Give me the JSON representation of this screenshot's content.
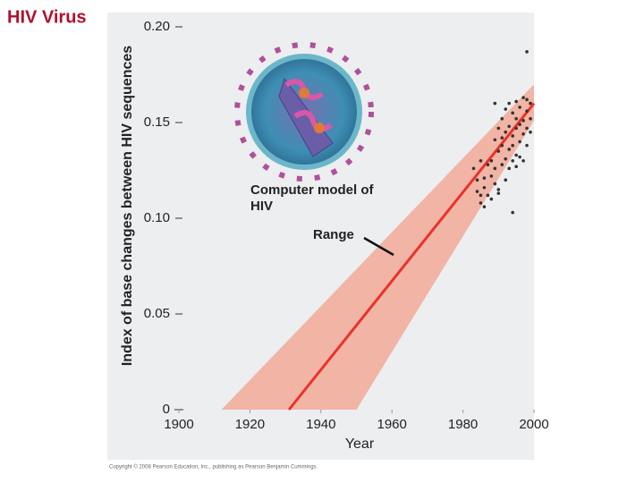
{
  "chart_data": {
    "type": "scatter",
    "title": "HIV Virus",
    "y_label": "Index of base changes between HIV sequences",
    "x_label": "Year",
    "annotation_model": "Computer model of HIV",
    "annotation_range": "Range",
    "copyright": "Copyright © 2008 Pearson Education, Inc., publishing as Pearson Benjamin Cummings.",
    "xlim": [
      1900,
      2000
    ],
    "xticks": [
      1900,
      1920,
      1940,
      1960,
      1980,
      2000
    ],
    "ylim": [
      0,
      0.2
    ],
    "yticks": [
      0,
      0.05,
      {
        "value": 0.1,
        "label": "0.10"
      },
      0.15,
      {
        "value": 0.2,
        "label": "0.20"
      }
    ],
    "point_color": "#333333",
    "line_color": "#e8332a",
    "range_color": "#f3a08c",
    "x": [
      1983,
      1984,
      1984,
      1985,
      1985,
      1986,
      1986,
      1986,
      1987,
      1987,
      1988,
      1988,
      1988,
      1989,
      1989,
      1989,
      1990,
      1990,
      1990,
      1991,
      1991,
      1991,
      1991,
      1992,
      1992,
      1992,
      1992,
      1993,
      1993,
      1993,
      1993,
      1994,
      1994,
      1994,
      1994,
      1995,
      1995,
      1995,
      1995,
      1995,
      1996,
      1996,
      1996,
      1996,
      1997,
      1997,
      1997,
      1997,
      1998,
      1998,
      1998,
      1998,
      1999,
      1999,
      1999,
      1994,
      1989,
      1985,
      1998,
      1990
    ],
    "values": [
      0.126,
      0.12,
      0.114,
      0.13,
      0.108,
      0.121,
      0.116,
      0.106,
      0.128,
      0.112,
      0.13,
      0.122,
      0.11,
      0.141,
      0.126,
      0.118,
      0.135,
      0.147,
      0.115,
      0.138,
      0.128,
      0.142,
      0.152,
      0.131,
      0.145,
      0.12,
      0.157,
      0.136,
      0.148,
      0.126,
      0.16,
      0.13,
      0.143,
      0.155,
      0.138,
      0.161,
      0.147,
      0.133,
      0.152,
      0.127,
      0.158,
      0.14,
      0.149,
      0.132,
      0.163,
      0.151,
      0.144,
      0.13,
      0.156,
      0.162,
      0.147,
      0.138,
      0.152,
      0.16,
      0.145,
      0.103,
      0.16,
      0.112,
      0.187,
      0.113
    ],
    "trend": {
      "x": [
        1931,
        2000
      ],
      "values": [
        0,
        0.16
      ]
    },
    "range_upper": {
      "x": [
        1912,
        2000
      ],
      "values": [
        0,
        0.17
      ]
    },
    "range_lower": {
      "x": [
        1950,
        2000
      ],
      "values": [
        0,
        0.151
      ]
    }
  }
}
